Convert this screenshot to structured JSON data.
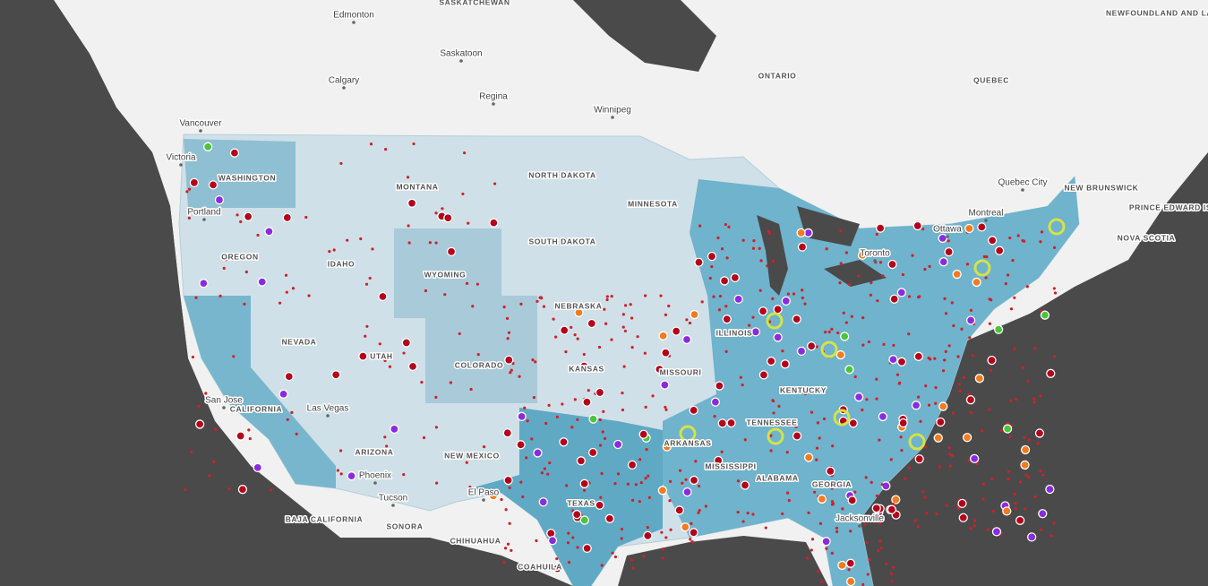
{
  "map": {
    "regions": [
      "SASKATCHEWAN",
      "ONTARIO",
      "QUEBEC",
      "NEWFOUNDLAND AND LABRADOR",
      "WASHINGTON",
      "MONTANA",
      "NORTH DAKOTA",
      "MINNESOTA",
      "NEW BRUNSWICK",
      "PRINCE EDWARD ISLAND",
      "NOVA SCOTIA",
      "OREGON",
      "IDAHO",
      "WYOMING",
      "SOUTH DAKOTA",
      "NEBRASKA",
      "NEVADA",
      "UTAH",
      "COLORADO",
      "ILLINOIS",
      "KANSAS",
      "MISSOURI",
      "KENTUCKY",
      "CALIFORNIA",
      "TENNESSEE",
      "ARKANSAS",
      "NEW MEXICO",
      "ARIZONA",
      "MISSISSIPPI",
      "ALABAMA",
      "GEORGIA",
      "TEXAS",
      "BAJA CALIFORNIA",
      "SONORA",
      "CHIHUAHUA",
      "COAHUILA"
    ],
    "cities": [
      "Edmonton",
      "Saskatoon",
      "Calgary",
      "Regina",
      "Winnipeg",
      "Vancouver",
      "Victoria",
      "Quebec City",
      "Montreal",
      "Ottawa",
      "Portland",
      "Toronto",
      "San Jose",
      "Las Vegas",
      "Phoenix",
      "El Paso",
      "Tucson",
      "Jacksonville"
    ]
  }
}
